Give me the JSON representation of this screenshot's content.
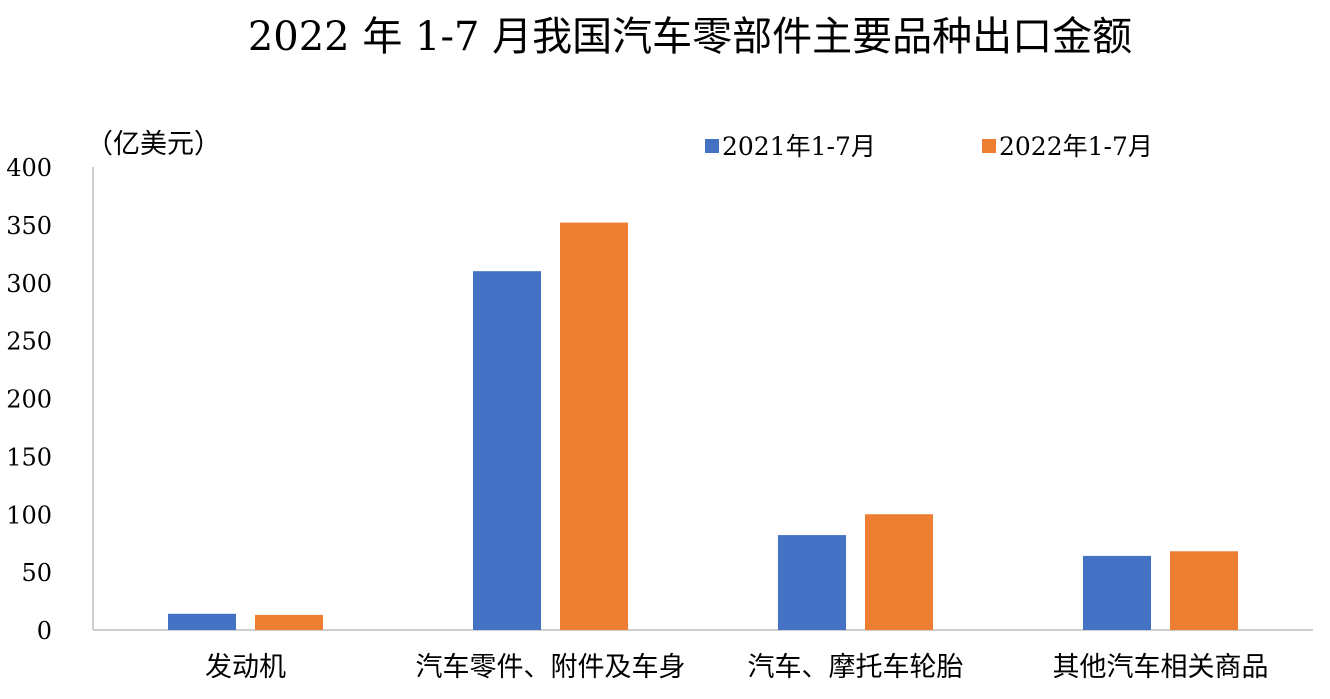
{
  "chart_data": {
    "type": "bar",
    "title": "2022 年 1-7 月我国汽车零部件主要品种出口金额",
    "unit_label": "（亿美元）",
    "xlabel": "",
    "ylabel": "",
    "ylim": [
      0,
      400
    ],
    "yticks": [
      0,
      50,
      100,
      150,
      200,
      250,
      300,
      350,
      400
    ],
    "grid": false,
    "legend_position": "top-right",
    "categories": [
      "发动机",
      "汽车零件、附件及车身",
      "汽车、摩托车轮胎",
      "其他汽车相关商品"
    ],
    "series": [
      {
        "name": "2021年1-7月",
        "color": "#4472C4",
        "values": [
          14,
          310,
          82,
          64
        ]
      },
      {
        "name": "2022年1-7月",
        "color": "#ED7D31",
        "values": [
          13,
          352,
          100,
          68
        ]
      }
    ]
  }
}
